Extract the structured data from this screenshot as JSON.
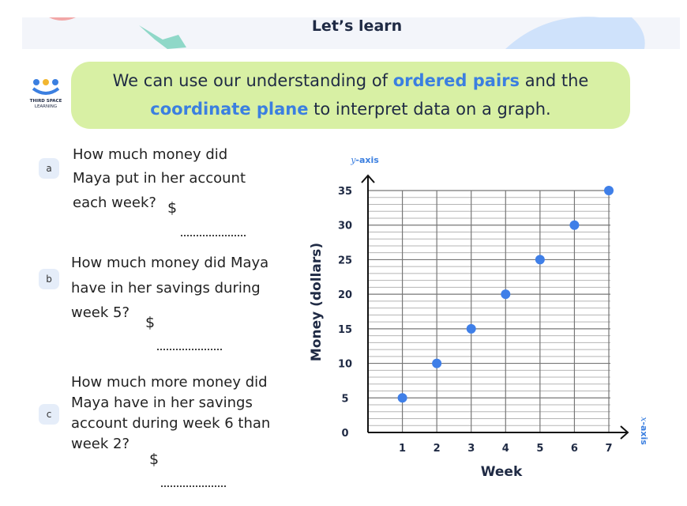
{
  "header": {
    "title": "Let’s learn"
  },
  "logo": {
    "line1": "THIRD SPACE",
    "line2": "LEARNING"
  },
  "intro": {
    "line1": [
      "We can use our understanding of",
      "ordered pairs",
      "and the"
    ],
    "line2": [
      "coordinate plane",
      "to interpret data on a graph."
    ]
  },
  "questions": [
    {
      "letter": "a",
      "lines": [
        "How much money did",
        "Maya put in her account",
        "each week?"
      ],
      "currency": "$"
    },
    {
      "letter": "b",
      "lines": [
        "How much money did Maya",
        "have in her savings during",
        "week 5?"
      ],
      "currency": "$"
    },
    {
      "letter": "c",
      "lines": [
        "How much more money did",
        "Maya have in her savings",
        "account during week 6 than",
        "week 2?"
      ],
      "currency": "$"
    }
  ],
  "chart_data": {
    "type": "scatter",
    "x": [
      1,
      2,
      3,
      4,
      5,
      6,
      7
    ],
    "series": [
      {
        "values": [
          5,
          10,
          15,
          20,
          25,
          30,
          35
        ],
        "color": "#3f7fe8"
      }
    ],
    "xlim": [
      0,
      7
    ],
    "ylim": [
      0,
      35
    ],
    "xticks": [
      1,
      2,
      3,
      4,
      5,
      6,
      7
    ],
    "yticks": [
      0,
      5,
      10,
      15,
      20,
      25,
      30,
      35
    ],
    "x_label": "Week",
    "y_label": "Money (dollars)",
    "y_axis_caption": {
      "var": "y",
      "text": "-axis"
    },
    "x_axis_caption": {
      "var": "x",
      "text": "-axis"
    },
    "grid": true
  }
}
